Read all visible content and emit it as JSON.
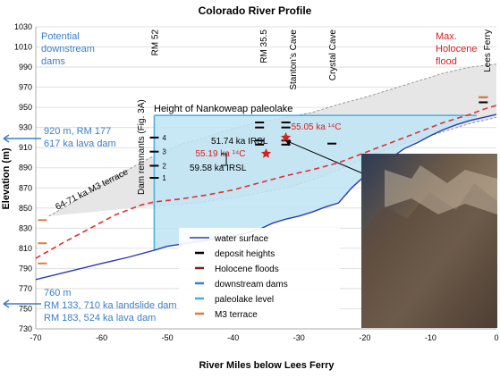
{
  "chart_data": {
    "type": "line",
    "title": "Colorado River Profile",
    "xlabel": "River Miles below Lees Ferry",
    "ylabel": "Elevation (m)",
    "xlim": [
      -70,
      0
    ],
    "ylim": [
      730,
      1030
    ],
    "xticks": [
      -70,
      -60,
      -50,
      -40,
      -30,
      -20,
      -10,
      0
    ],
    "yticks": [
      730,
      750,
      770,
      790,
      810,
      830,
      850,
      870,
      890,
      910,
      930,
      950,
      970,
      990,
      1010,
      1030
    ],
    "grid": "horizontal",
    "legend_position": "bottom-center",
    "legend": [
      {
        "label": "water surface",
        "color": "#2a3bb5",
        "kind": "line"
      },
      {
        "label": "deposit heights",
        "color": "#000000",
        "kind": "dash"
      },
      {
        "label": "Holocene floods",
        "color": "#8b1a1a",
        "kind": "dash"
      },
      {
        "label": "downstream dams",
        "color": "#3b7fc4",
        "kind": "dash"
      },
      {
        "label": "paleolake level",
        "color": "#44aee0",
        "kind": "dash"
      },
      {
        "label": "M3 terrace",
        "color": "#e07b39",
        "kind": "dash"
      }
    ],
    "colors": {
      "water": "#2a3bb5",
      "holocene_flood": "#e03030",
      "paleolake_fill": "#bfe4f4",
      "paleolake_line": "#44aee0",
      "envelope_fill": "#e6e6e6",
      "envelope_line": "#999999",
      "dams_text": "#3b7fc4",
      "red_text": "#d42020",
      "m3_terrace": "#e07b39",
      "dark_red": "#8b1a1a"
    },
    "series": [
      {
        "key": "water_surface",
        "x": [
          -70,
          -65,
          -60,
          -56,
          -52,
          -50,
          -47,
          -44,
          -41,
          -38,
          -36,
          -34,
          -32,
          -30,
          -28,
          -26,
          -24,
          -22,
          -20,
          -18,
          -16,
          -14,
          -12,
          -10,
          -8,
          -6,
          -4,
          -2,
          0
        ],
        "y": [
          779,
          787,
          795,
          801,
          808,
          812,
          815,
          818,
          821,
          825,
          829,
          835,
          839,
          842,
          846,
          851,
          855,
          870,
          882,
          893,
          900,
          909,
          915,
          922,
          928,
          933,
          937,
          940,
          943
        ]
      },
      {
        "key": "holocene_max",
        "x": [
          -70,
          -66,
          -62,
          -58,
          -54,
          -52,
          -48,
          -44,
          -40,
          -36,
          -32,
          -28,
          -24,
          -20,
          -16,
          -12,
          -8,
          -4,
          -2,
          0
        ],
        "y": [
          800,
          815,
          829,
          843,
          853,
          856,
          859,
          863,
          868,
          875,
          882,
          888,
          895,
          905,
          915,
          925,
          935,
          943,
          948,
          952
        ]
      },
      {
        "key": "envelope_upper",
        "x": [
          -68,
          -64,
          -60,
          -56,
          -52,
          -48,
          -44,
          -40,
          -36,
          -32,
          -28,
          -24,
          -20,
          -16,
          -12,
          -8,
          -4,
          0
        ],
        "y": [
          842,
          857,
          873,
          888,
          902,
          913,
          921,
          929,
          935,
          940,
          945,
          953,
          960,
          968,
          976,
          984,
          990,
          993
        ]
      },
      {
        "key": "envelope_lower",
        "x": [
          -52,
          -46,
          -40,
          -36,
          -32,
          -28,
          -24,
          -20,
          -16,
          -12,
          -8,
          -4,
          0
        ],
        "y": [
          852,
          855,
          860,
          865,
          870,
          878,
          888,
          900,
          910,
          918,
          926,
          934,
          940
        ]
      }
    ],
    "paleolake": {
      "level": 942,
      "x_start": -52,
      "x_end": -3
    },
    "deposit_heights": [
      {
        "x": -52,
        "y": 920,
        "label": "4"
      },
      {
        "x": -52,
        "y": 906,
        "label": "3"
      },
      {
        "x": -52,
        "y": 892,
        "label": "2"
      },
      {
        "x": -52,
        "y": 880,
        "label": "1"
      },
      {
        "x": -36,
        "y": 935
      },
      {
        "x": -32,
        "y": 935
      },
      {
        "x": -36,
        "y": 930
      },
      {
        "x": -32,
        "y": 930
      },
      {
        "x": -36,
        "y": 917
      },
      {
        "x": -32,
        "y": 917
      },
      {
        "x": -36,
        "y": 913
      },
      {
        "x": -32,
        "y": 913
      },
      {
        "x": -25,
        "y": 914
      },
      {
        "x": -2,
        "y": 955
      }
    ],
    "holocene_flood_marks": [
      {
        "x": -2,
        "y": 960
      }
    ],
    "m3_terrace_marks": [
      {
        "x": -69,
        "y": 838
      },
      {
        "x": -69,
        "y": 815
      },
      {
        "x": -69,
        "y": 795
      },
      {
        "x": -2,
        "y": 960
      }
    ],
    "stars": [
      {
        "x": -35,
        "y": 904,
        "label": "55.19 ka ¹⁴C"
      },
      {
        "x": -32,
        "y": 920,
        "label": "55.05 ka ¹⁴C"
      }
    ],
    "vertical_labels": [
      {
        "x": -52,
        "text": "RM 52"
      },
      {
        "x": -35.5,
        "text": "RM 35.5"
      },
      {
        "x": -31,
        "text": "Stanton’s Cave"
      },
      {
        "x": -25,
        "text": "Crystal  Cave"
      },
      {
        "x": -1.5,
        "text": "Lees Ferry"
      }
    ],
    "annotations": {
      "potential_dams": [
        "Potential",
        "downstream",
        "dams"
      ],
      "max_holocene": [
        "Max.",
        "Holocene",
        "flood"
      ],
      "nankoweap": "Height of Nankoweap paleolake",
      "dam_remnants": "Dam remnants (Fig. 3A)",
      "terrace": "64-71 ka M3 terrace",
      "irsl_upper": "51.74 ka IRSL",
      "irsl_lower": "59.58 ka IRSL",
      "dam_920": [
        "920 m, RM 177",
        "617 ka lava dam"
      ],
      "dam_760": [
        "760 m",
        "RM 133, 710 ka landslide dam",
        "RM 183, 524 ka lava dam"
      ]
    }
  }
}
